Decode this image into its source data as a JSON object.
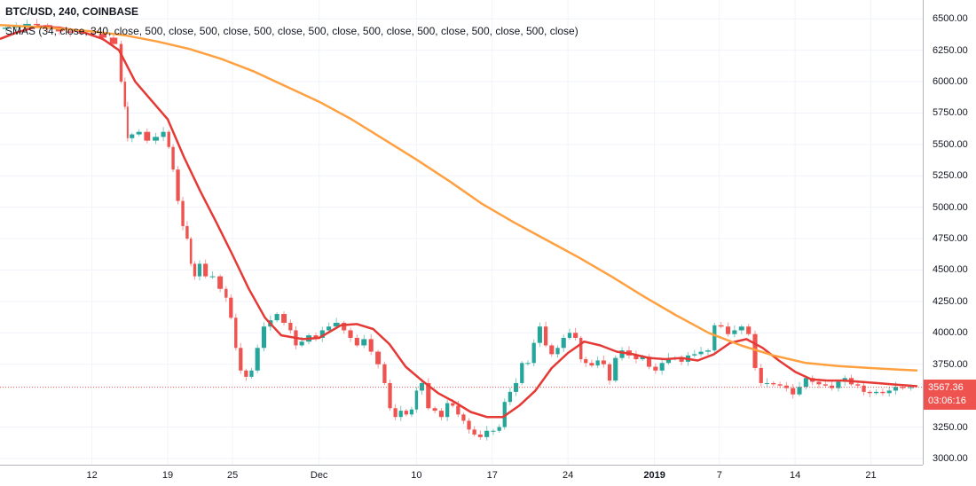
{
  "header": {
    "symbol": "BTC/USD, 240, COINBASE",
    "indicator": "SMAS (34, close, 340, close, 500, close, 500, close, 500, close, 500, close, 500, close, 500, close, 500, close, 500, close)"
  },
  "last_price": {
    "value": "3567.36",
    "countdown": "03:06:16"
  },
  "colors": {
    "up": "#26a69a",
    "down": "#ef5350",
    "sma_short": "#e53935",
    "sma_long": "#ffa040",
    "grid": "#f0f3fa",
    "price_line": "#ef5350"
  },
  "chart_data": {
    "type": "line",
    "title": "BTC/USD, 240, COINBASE",
    "ylim": [
      2950,
      6650
    ],
    "price_ticks": [
      "6500.00",
      "6250.00",
      "6000.00",
      "5750.00",
      "5500.00",
      "5250.00",
      "5000.00",
      "4750.00",
      "4500.00",
      "4250.00",
      "4000.00",
      "3750.00",
      "3250.00",
      "3000.00"
    ],
    "x_ticks": [
      {
        "label": "12",
        "bold": false,
        "day": 12
      },
      {
        "label": "19",
        "bold": false,
        "day": 19
      },
      {
        "label": "25",
        "bold": false,
        "day": 25
      },
      {
        "label": "Dec",
        "bold": false,
        "day": 33
      },
      {
        "label": "10",
        "bold": false,
        "day": 42
      },
      {
        "label": "17",
        "bold": false,
        "day": 49
      },
      {
        "label": "24",
        "bold": false,
        "day": 56
      },
      {
        "label": "2019",
        "bold": true,
        "day": 64
      },
      {
        "label": "7",
        "bold": false,
        "day": 70
      },
      {
        "label": "14",
        "bold": false,
        "day": 77
      },
      {
        "label": "21",
        "bold": false,
        "day": 84
      }
    ],
    "x_range_days": [
      3.5,
      88.8
    ],
    "price_series": [
      [
        3.6,
        6420
      ],
      [
        4.5,
        6430
      ],
      [
        5.5,
        6445
      ],
      [
        6.5,
        6460
      ],
      [
        7.3,
        6450
      ],
      [
        8.5,
        6420
      ],
      [
        9.5,
        6400
      ],
      [
        10.5,
        6390
      ],
      [
        11.5,
        6385
      ],
      [
        12.5,
        6380
      ],
      [
        13.5,
        6350
      ],
      [
        14.5,
        6300
      ],
      [
        14.9,
        6000
      ],
      [
        15.2,
        5800
      ],
      [
        15.4,
        5550
      ],
      [
        16,
        5580
      ],
      [
        16.7,
        5600
      ],
      [
        17.5,
        5530
      ],
      [
        18.3,
        5560
      ],
      [
        18.9,
        5600
      ],
      [
        19.3,
        5480
      ],
      [
        19.7,
        5300
      ],
      [
        20.2,
        5050
      ],
      [
        20.6,
        4850
      ],
      [
        21,
        4750
      ],
      [
        21.3,
        4550
      ],
      [
        21.7,
        4450
      ],
      [
        22.2,
        4550
      ],
      [
        22.8,
        4450
      ],
      [
        23.5,
        4450
      ],
      [
        24.2,
        4350
      ],
      [
        24.6,
        4280
      ],
      [
        25.1,
        4120
      ],
      [
        25.5,
        3880
      ],
      [
        26,
        3700
      ],
      [
        26.5,
        3650
      ],
      [
        27,
        3700
      ],
      [
        27.6,
        3880
      ],
      [
        28.2,
        4050
      ],
      [
        28.8,
        4100
      ],
      [
        29.4,
        4150
      ],
      [
        30.1,
        4080
      ],
      [
        30.6,
        4020
      ],
      [
        31.1,
        3900
      ],
      [
        31.7,
        3930
      ],
      [
        32.4,
        3980
      ],
      [
        33,
        3960
      ],
      [
        33.6,
        4020
      ],
      [
        34.2,
        4050
      ],
      [
        35,
        4080
      ],
      [
        35.6,
        4020
      ],
      [
        36.2,
        3960
      ],
      [
        36.8,
        3900
      ],
      [
        37.5,
        3950
      ],
      [
        38.1,
        3850
      ],
      [
        38.8,
        3750
      ],
      [
        39.3,
        3600
      ],
      [
        39.8,
        3400
      ],
      [
        40.3,
        3330
      ],
      [
        40.8,
        3380
      ],
      [
        41.3,
        3350
      ],
      [
        41.8,
        3390
      ],
      [
        42.2,
        3540
      ],
      [
        42.8,
        3600
      ],
      [
        43.4,
        3400
      ],
      [
        44,
        3380
      ],
      [
        44.6,
        3330
      ],
      [
        45.1,
        3440
      ],
      [
        45.6,
        3420
      ],
      [
        46.1,
        3350
      ],
      [
        46.6,
        3300
      ],
      [
        47.1,
        3230
      ],
      [
        47.6,
        3190
      ],
      [
        48.2,
        3170
      ],
      [
        48.8,
        3220
      ],
      [
        49.4,
        3220
      ],
      [
        49.9,
        3250
      ],
      [
        50.4,
        3450
      ],
      [
        50.9,
        3530
      ],
      [
        51.5,
        3600
      ],
      [
        52,
        3760
      ],
      [
        52.6,
        3760
      ],
      [
        53.1,
        3920
      ],
      [
        53.7,
        4050
      ],
      [
        54.2,
        3900
      ],
      [
        54.8,
        3830
      ],
      [
        55.3,
        3880
      ],
      [
        55.9,
        3960
      ],
      [
        56.4,
        4000
      ],
      [
        57,
        3960
      ],
      [
        57.4,
        3790
      ],
      [
        57.9,
        3760
      ],
      [
        58.5,
        3740
      ],
      [
        59,
        3780
      ],
      [
        59.6,
        3750
      ],
      [
        60.1,
        3620
      ],
      [
        60.7,
        3800
      ],
      [
        61.3,
        3860
      ],
      [
        62,
        3820
      ],
      [
        62.6,
        3790
      ],
      [
        63.2,
        3810
      ],
      [
        63.8,
        3730
      ],
      [
        64.4,
        3700
      ],
      [
        65,
        3760
      ],
      [
        65.6,
        3800
      ],
      [
        66.2,
        3800
      ],
      [
        66.8,
        3770
      ],
      [
        67.4,
        3820
      ],
      [
        68,
        3830
      ],
      [
        68.6,
        3850
      ],
      [
        69.3,
        3860
      ],
      [
        69.8,
        4060
      ],
      [
        70.5,
        4050
      ],
      [
        71.1,
        3990
      ],
      [
        71.7,
        4020
      ],
      [
        72.4,
        4050
      ],
      [
        73,
        3990
      ],
      [
        73.6,
        3720
      ],
      [
        74.1,
        3600
      ],
      [
        74.7,
        3600
      ],
      [
        75.3,
        3590
      ],
      [
        75.9,
        3580
      ],
      [
        76.5,
        3560
      ],
      [
        77.1,
        3510
      ],
      [
        77.7,
        3570
      ],
      [
        78.3,
        3640
      ],
      [
        78.9,
        3610
      ],
      [
        79.5,
        3590
      ],
      [
        80.1,
        3580
      ],
      [
        80.7,
        3560
      ],
      [
        81.3,
        3610
      ],
      [
        81.9,
        3640
      ],
      [
        82.5,
        3590
      ],
      [
        83.1,
        3580
      ],
      [
        83.6,
        3530
      ],
      [
        84.2,
        3520
      ],
      [
        84.8,
        3530
      ],
      [
        85.4,
        3520
      ],
      [
        86,
        3540
      ],
      [
        86.6,
        3570
      ],
      [
        87.3,
        3560
      ],
      [
        88.1,
        3567.36
      ]
    ],
    "series": [
      {
        "type": "sma",
        "values": [
          [
            3.5,
            6340
          ],
          [
            5,
            6390
          ],
          [
            7,
            6440
          ],
          [
            9,
            6430
          ],
          [
            11,
            6400
          ],
          [
            13,
            6340
          ],
          [
            14.5,
            6250
          ],
          [
            16,
            6000
          ],
          [
            17.5,
            5850
          ],
          [
            19,
            5700
          ],
          [
            20.5,
            5400
          ],
          [
            22,
            5130
          ],
          [
            23.5,
            4880
          ],
          [
            25,
            4620
          ],
          [
            26.5,
            4350
          ],
          [
            28,
            4120
          ],
          [
            29.5,
            3980
          ],
          [
            31.5,
            3950
          ],
          [
            33,
            3960
          ],
          [
            35,
            4060
          ],
          [
            36.5,
            4070
          ],
          [
            38,
            4030
          ],
          [
            39.5,
            3910
          ],
          [
            41,
            3730
          ],
          [
            42.5,
            3620
          ],
          [
            44,
            3520
          ],
          [
            45.5,
            3450
          ],
          [
            47,
            3370
          ],
          [
            48.5,
            3330
          ],
          [
            50,
            3330
          ],
          [
            51.5,
            3420
          ],
          [
            53,
            3540
          ],
          [
            54.5,
            3720
          ],
          [
            56,
            3840
          ],
          [
            57.5,
            3930
          ],
          [
            59,
            3900
          ],
          [
            60.5,
            3850
          ],
          [
            62,
            3830
          ],
          [
            63.5,
            3800
          ],
          [
            65,
            3790
          ],
          [
            66.5,
            3800
          ],
          [
            68,
            3780
          ],
          [
            69.5,
            3830
          ],
          [
            71,
            3920
          ],
          [
            72.5,
            3950
          ],
          [
            74,
            3880
          ],
          [
            75.5,
            3780
          ],
          [
            77,
            3690
          ],
          [
            78.5,
            3630
          ],
          [
            80,
            3620
          ],
          [
            81.5,
            3620
          ],
          [
            83,
            3610
          ],
          [
            84.5,
            3600
          ],
          [
            86,
            3590
          ],
          [
            88.3,
            3575
          ]
        ]
      },
      {
        "type": "sma",
        "values": [
          [
            3.5,
            6450
          ],
          [
            8,
            6430
          ],
          [
            12,
            6400
          ],
          [
            15,
            6370
          ],
          [
            18,
            6320
          ],
          [
            21,
            6260
          ],
          [
            24,
            6180
          ],
          [
            27,
            6080
          ],
          [
            30,
            5960
          ],
          [
            33,
            5840
          ],
          [
            36,
            5700
          ],
          [
            39,
            5540
          ],
          [
            42,
            5380
          ],
          [
            45,
            5210
          ],
          [
            48,
            5030
          ],
          [
            51,
            4880
          ],
          [
            54,
            4740
          ],
          [
            57,
            4600
          ],
          [
            60,
            4450
          ],
          [
            63,
            4290
          ],
          [
            66,
            4140
          ],
          [
            69,
            4000
          ],
          [
            72,
            3900
          ],
          [
            75,
            3820
          ],
          [
            78,
            3760
          ],
          [
            81,
            3735
          ],
          [
            84,
            3720
          ],
          [
            86,
            3710
          ],
          [
            88.3,
            3700
          ]
        ]
      }
    ]
  }
}
